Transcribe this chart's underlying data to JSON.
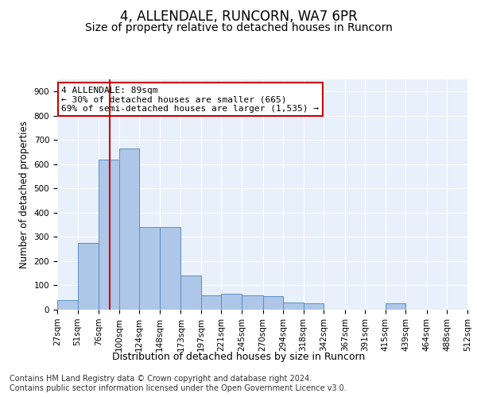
{
  "title1": "4, ALLENDALE, RUNCORN, WA7 6PR",
  "title2": "Size of property relative to detached houses in Runcorn",
  "xlabel": "Distribution of detached houses by size in Runcorn",
  "ylabel": "Number of detached properties",
  "footnote1": "Contains HM Land Registry data © Crown copyright and database right 2024.",
  "footnote2": "Contains public sector information licensed under the Open Government Licence v3.0.",
  "annotation_line1": "4 ALLENDALE: 89sqm",
  "annotation_line2": "← 30% of detached houses are smaller (665)",
  "annotation_line3": "69% of semi-detached houses are larger (1,535) →",
  "bar_color": "#aec6e8",
  "bar_edge_color": "#5a8fc2",
  "red_line_x": 89,
  "bin_edges": [
    27,
    51,
    76,
    100,
    124,
    148,
    173,
    197,
    221,
    245,
    270,
    294,
    318,
    342,
    367,
    391,
    415,
    439,
    464,
    488,
    512
  ],
  "bar_heights": [
    40,
    275,
    620,
    665,
    340,
    340,
    140,
    60,
    65,
    60,
    55,
    30,
    25,
    0,
    0,
    0,
    25,
    0,
    0,
    0
  ],
  "ylim": [
    0,
    950
  ],
  "yticks": [
    0,
    100,
    200,
    300,
    400,
    500,
    600,
    700,
    800,
    900
  ],
  "background_color": "#e8f0fb",
  "fig_background": "#ffffff",
  "annotation_box_color": "#ffffff",
  "annotation_box_edge": "#cc0000",
  "red_line_color": "#cc0000",
  "title1_fontsize": 12,
  "title2_fontsize": 10,
  "xlabel_fontsize": 9,
  "ylabel_fontsize": 8.5,
  "tick_fontsize": 7.5,
  "footnote_fontsize": 7,
  "annotation_fontsize": 8
}
